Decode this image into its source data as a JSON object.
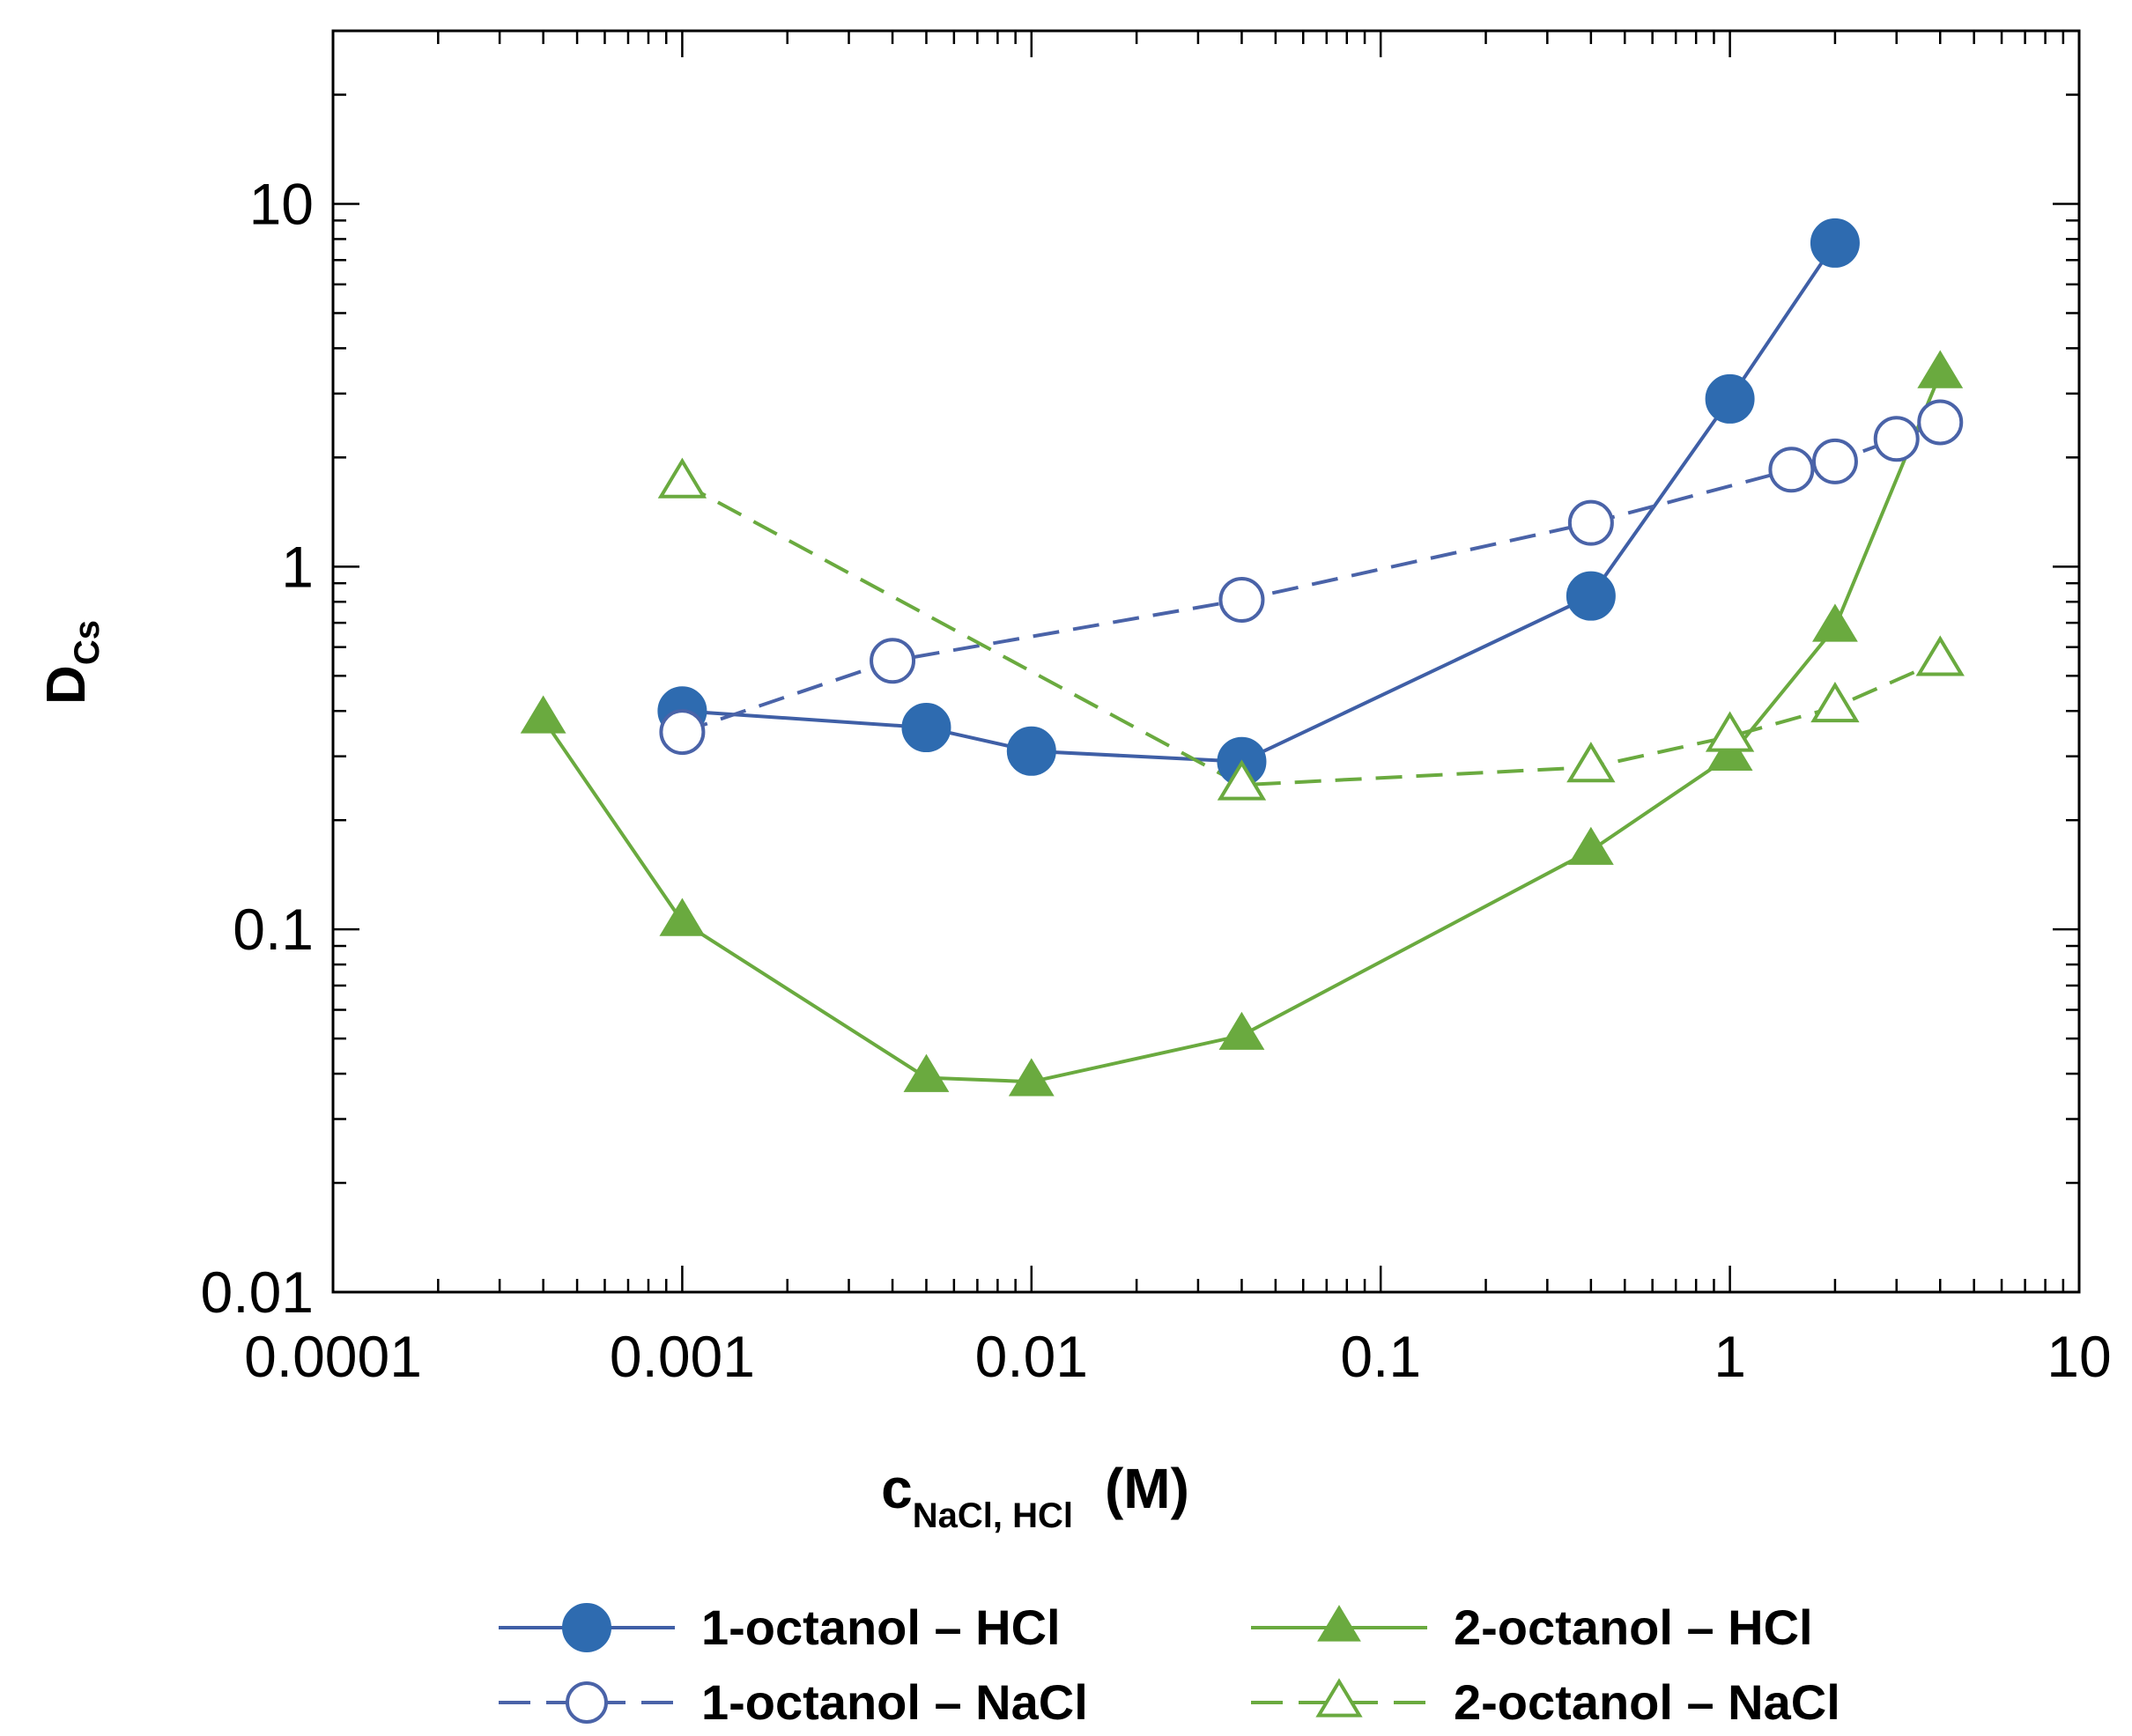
{
  "chart_data": {
    "type": "line",
    "xscale": "log",
    "yscale": "log",
    "xlim": [
      0.0001,
      10
    ],
    "ylim": [
      0.01,
      30
    ],
    "xticks": [
      {
        "value": 0.0001,
        "label": "0.0001"
      },
      {
        "value": 0.001,
        "label": "0.001"
      },
      {
        "value": 0.01,
        "label": "0.01"
      },
      {
        "value": 0.1,
        "label": "0.1"
      },
      {
        "value": 1,
        "label": "1"
      },
      {
        "value": 10,
        "label": "10"
      }
    ],
    "yticks": [
      {
        "value": 0.01,
        "label": "0.01"
      },
      {
        "value": 0.1,
        "label": "0.1"
      },
      {
        "value": 1,
        "label": "1"
      },
      {
        "value": 10,
        "label": "10"
      }
    ],
    "xlabel": {
      "main": "c",
      "sub": "NaCl, HCl",
      "unit": "(M)"
    },
    "ylabel": {
      "main": "D",
      "sub": "Cs"
    },
    "legend_position": "bottom",
    "series": [
      {
        "name": "1-octanol – HCl",
        "color": "#2e6bb0",
        "line_color": "#3f5fa6",
        "marker": "circle",
        "filled": true,
        "dashed": false,
        "x": [
          0.001,
          0.005,
          0.01,
          0.04,
          0.4,
          1,
          2
        ],
        "y": [
          0.4,
          0.36,
          0.31,
          0.29,
          0.83,
          2.9,
          7.8
        ]
      },
      {
        "name": "1-octanol – NaCl",
        "color": "#4a63a8",
        "line_color": "#4a63a8",
        "marker": "circle",
        "filled": false,
        "dashed": true,
        "x": [
          0.001,
          0.004,
          0.04,
          0.4,
          1.5,
          2,
          3,
          4
        ],
        "y": [
          0.35,
          0.55,
          0.81,
          1.32,
          1.85,
          1.95,
          2.25,
          2.5
        ]
      },
      {
        "name": "2-octanol – HCl",
        "color": "#6aaa3f",
        "line_color": "#6aaa3f",
        "marker": "triangle",
        "filled": true,
        "dashed": false,
        "x": [
          0.0004,
          0.001,
          0.005,
          0.01,
          0.04,
          0.4,
          1,
          2,
          4
        ],
        "y": [
          0.38,
          0.105,
          0.039,
          0.038,
          0.051,
          0.165,
          0.3,
          0.68,
          3.4
        ]
      },
      {
        "name": "2-octanol – NaCl",
        "color": "#6aaa3f",
        "line_color": "#6aaa3f",
        "marker": "triangle",
        "filled": false,
        "dashed": true,
        "x": [
          0.001,
          0.04,
          0.4,
          1,
          2,
          4
        ],
        "y": [
          1.7,
          0.25,
          0.28,
          0.34,
          0.41,
          0.55
        ]
      }
    ]
  }
}
